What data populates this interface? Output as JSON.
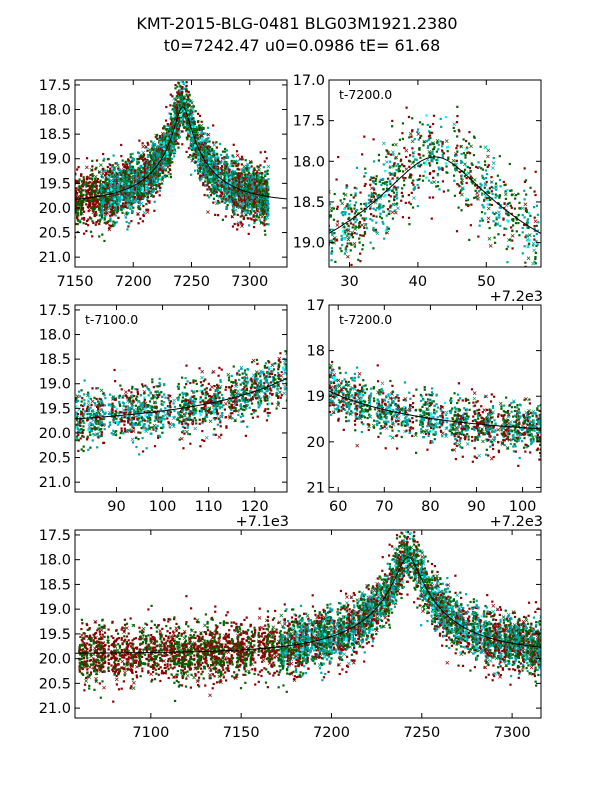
{
  "figure": {
    "title_line1": "KMT-2015-BLG-0481 BLG03M1921.2380",
    "title_line2": "t0=7242.47 u0=0.0986 tE=  61.68"
  },
  "model": {
    "t0": 7242.47,
    "u0": 0.0986,
    "tE": 61.68,
    "baseline_mag": 19.9
  },
  "series_colors": {
    "ctio": "#8b0000",
    "saao": "#006400",
    "sso": "#00a5a5",
    "sso_light": "#00ffff",
    "model": "#000000"
  },
  "chart_data": [
    {
      "type": "scatter",
      "panel": "top-left",
      "title": "",
      "xlabel": "",
      "ylabel": "",
      "offset_label": "",
      "annotation": "",
      "xlim": [
        7150,
        7332
      ],
      "ylim": [
        21.2,
        17.4
      ],
      "xticks": [
        7150,
        7200,
        7250,
        7300
      ],
      "yticks": [
        17.5,
        18.0,
        18.5,
        19.0,
        19.5,
        20.0,
        20.5,
        21.0
      ],
      "ytick_labels": [
        "17.5",
        "18.0",
        "18.5",
        "19.0",
        "19.5",
        "20.0",
        "20.5",
        "21.0"
      ],
      "xtick_labels": [
        "7150",
        "7200",
        "7250",
        "7300"
      ]
    },
    {
      "type": "scatter",
      "panel": "top-right",
      "offset": 7200,
      "offset_label": "+7.2e3",
      "annotation": "t-7200.0",
      "xlim": [
        27,
        58
      ],
      "ylim": [
        19.3,
        17.0
      ],
      "xticks": [
        30,
        40,
        50
      ],
      "xtick_labels": [
        "30",
        "40",
        "50"
      ],
      "yticks": [
        17.0,
        17.5,
        18.0,
        18.5,
        19.0
      ],
      "ytick_labels": [
        "17.0",
        "17.5",
        "18.0",
        "18.5",
        "19.0"
      ]
    },
    {
      "type": "scatter",
      "panel": "middle-left",
      "offset": 7100,
      "offset_label": "+7.1e3",
      "annotation": "t-7100.0",
      "xlim": [
        81,
        127
      ],
      "ylim": [
        21.2,
        17.4
      ],
      "xticks": [
        90,
        100,
        110,
        120
      ],
      "xtick_labels": [
        "90",
        "100",
        "110",
        "120"
      ],
      "yticks": [
        17.5,
        18.0,
        18.5,
        19.0,
        19.5,
        20.0,
        20.5,
        21.0
      ],
      "ytick_labels": [
        "17.5",
        "18.0",
        "18.5",
        "19.0",
        "19.5",
        "20.0",
        "20.5",
        "21.0"
      ]
    },
    {
      "type": "scatter",
      "panel": "middle-right",
      "offset": 7200,
      "offset_label": "+7.2e3",
      "annotation": "t-7200.0",
      "xlim": [
        58,
        104
      ],
      "ylim": [
        21.1,
        17.0
      ],
      "xticks": [
        60,
        70,
        80,
        90,
        100
      ],
      "xtick_labels": [
        "60",
        "70",
        "80",
        "90",
        "100"
      ],
      "yticks": [
        17,
        18,
        19,
        20,
        21
      ],
      "ytick_labels": [
        "17",
        "18",
        "19",
        "20",
        "21"
      ]
    },
    {
      "type": "scatter",
      "panel": "bottom",
      "offset_label": "",
      "annotation": "",
      "xlim": [
        7058,
        7316
      ],
      "ylim": [
        21.2,
        17.4
      ],
      "xticks": [
        7100,
        7150,
        7200,
        7250,
        7300
      ],
      "xtick_labels": [
        "7100",
        "7150",
        "7200",
        "7250",
        "7300"
      ],
      "yticks": [
        17.5,
        18.0,
        18.5,
        19.0,
        19.5,
        20.0,
        20.5,
        21.0
      ],
      "ytick_labels": [
        "17.5",
        "18.0",
        "18.5",
        "19.0",
        "19.5",
        "20.0",
        "20.5",
        "21.0"
      ]
    }
  ]
}
